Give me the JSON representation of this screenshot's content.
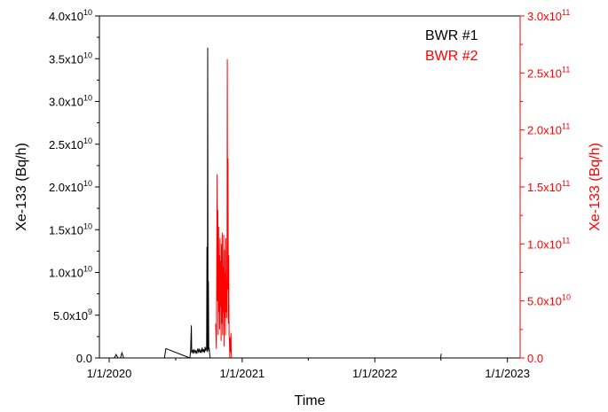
{
  "chart_data": {
    "type": "line",
    "xlabel": "Time",
    "ylabel_left": "Xe-133 (Bq/h)",
    "ylabel_right": "Xe-133 (Bq/h)",
    "x_ticks": [
      "1/1/2020",
      "1/1/2021",
      "1/1/2022",
      "1/1/2023"
    ],
    "x_range": [
      "2019-12-05",
      "2023-02-05"
    ],
    "ylim_left": [
      0,
      40000000000.0
    ],
    "ylim_right": [
      0,
      300000000000.0
    ],
    "y_ticks_left": [
      {
        "m": "0.0",
        "e": ""
      },
      {
        "m": "5.0x10",
        "e": "9"
      },
      {
        "m": "1.0x10",
        "e": "10"
      },
      {
        "m": "1.5x10",
        "e": "10"
      },
      {
        "m": "2.0x10",
        "e": "10"
      },
      {
        "m": "2.5x10",
        "e": "10"
      },
      {
        "m": "3.0x10",
        "e": "10"
      },
      {
        "m": "3.5x10",
        "e": "10"
      },
      {
        "m": "4.0x10",
        "e": "10"
      }
    ],
    "y_ticks_right": [
      {
        "m": "0.0",
        "e": ""
      },
      {
        "m": "5.0x10",
        "e": "10"
      },
      {
        "m": "1.0x10",
        "e": "11"
      },
      {
        "m": "1.5x10",
        "e": "11"
      },
      {
        "m": "2.0x10",
        "e": "11"
      },
      {
        "m": "2.5x10",
        "e": "11"
      },
      {
        "m": "3.0x10",
        "e": "11"
      }
    ],
    "legend_position": "top-right",
    "colors": {
      "series1": "#000000",
      "series2": "#ff0000"
    },
    "series": [
      {
        "name": "BWR #1",
        "axis": "left",
        "x": [
          "2020-01-15",
          "2020-01-20",
          "2020-01-25",
          "2020-02-01",
          "2020-02-05",
          "2020-02-10",
          "2020-02-15",
          "2020-06-01",
          "2020-06-05",
          "2020-08-10",
          "2020-08-12",
          "2020-08-14",
          "2020-08-15",
          "2020-08-18",
          "2020-08-20",
          "2020-08-22",
          "2020-08-25",
          "2020-08-27",
          "2020-08-29",
          "2020-09-01",
          "2020-09-03",
          "2020-09-05",
          "2020-09-07",
          "2020-09-09",
          "2020-09-11",
          "2020-09-13",
          "2020-09-15",
          "2020-09-17",
          "2020-09-19",
          "2020-09-21",
          "2020-09-23",
          "2020-09-25",
          "2020-09-26",
          "2020-09-27",
          "2020-09-28",
          "2020-09-29",
          "2020-09-30",
          "2020-10-01",
          "2020-10-02",
          "2020-10-03",
          "2020-10-04",
          "2020-10-05",
          "2022-07-01",
          "2022-07-03"
        ],
        "y": [
          0,
          400000000.0,
          0,
          0,
          600000000.0,
          0,
          0,
          0,
          1100000000.0,
          0,
          700000000.0,
          3800000000.0,
          600000000.0,
          900000000.0,
          500000000.0,
          1000000000.0,
          600000000.0,
          900000000.0,
          500000000.0,
          1100000000.0,
          700000000.0,
          1000000000.0,
          600000000.0,
          900000000.0,
          600000000.0,
          1200000000.0,
          700000000.0,
          1000000000.0,
          600000000.0,
          1300000000.0,
          800000000.0,
          1200000000.0,
          13000000000.0,
          700000000.0,
          36300000000.0,
          1000000000.0,
          9000000000.0,
          800000000.0,
          1200000000.0,
          700000000.0,
          300000000.0,
          0,
          0,
          500000000.0
        ]
      },
      {
        "name": "BWR #2",
        "axis": "right",
        "x": [
          "2020-10-20",
          "2020-10-22",
          "2020-10-24",
          "2020-10-25",
          "2020-10-26",
          "2020-10-27",
          "2020-10-28",
          "2020-10-29",
          "2020-10-30",
          "2020-10-31",
          "2020-11-01",
          "2020-11-02",
          "2020-11-03",
          "2020-11-04",
          "2020-11-05",
          "2020-11-06",
          "2020-11-07",
          "2020-11-08",
          "2020-11-09",
          "2020-11-10",
          "2020-11-11",
          "2020-11-12",
          "2020-11-13",
          "2020-11-14",
          "2020-11-15",
          "2020-11-16",
          "2020-11-17",
          "2020-11-18",
          "2020-11-19",
          "2020-11-20",
          "2020-11-21",
          "2020-11-22",
          "2020-11-23",
          "2020-11-24",
          "2020-11-25",
          "2020-11-26",
          "2020-11-27",
          "2020-11-28",
          "2020-11-29",
          "2020-11-30",
          "2020-12-01",
          "2020-12-02",
          "2020-12-03",
          "2020-12-04",
          "2020-12-06",
          "2020-12-08",
          "2020-12-10",
          "2020-12-12",
          "2020-12-14",
          "2020-12-16"
        ],
        "y": [
          30000000000.0,
          8000000000.0,
          161000000000.0,
          50000000000.0,
          130000000000.0,
          20000000000.0,
          115000000000.0,
          40000000000.0,
          90000000000.0,
          25000000000.0,
          105000000000.0,
          45000000000.0,
          85000000000.0,
          15000000000.0,
          100000000000.0,
          30000000000.0,
          110000000000.0,
          20000000000.0,
          80000000000.0,
          40000000000.0,
          108000000000.0,
          10000000000.0,
          95000000000.0,
          35000000000.0,
          75000000000.0,
          20000000000.0,
          105000000000.0,
          40000000000.0,
          70000000000.0,
          35000000000.0,
          262000000000.0,
          60000000000.0,
          175000000000.0,
          30000000000.0,
          90000000000.0,
          20000000000.0,
          15000000000.0,
          0,
          18000000000.0,
          5000000000.0,
          22000000000.0,
          3000000000.0,
          0,
          0,
          0,
          0,
          0,
          0,
          0,
          0
        ]
      }
    ]
  }
}
